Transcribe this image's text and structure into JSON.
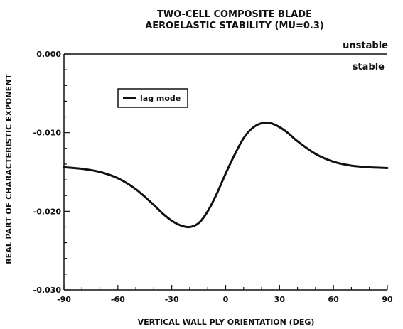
{
  "chart_data": {
    "type": "line",
    "title": "TWO-CELL COMPOSITE BLADE",
    "subtitle": "AEROELASTIC STABILITY (MU=0.3)",
    "xlabel": "VERTICAL WALL PLY ORIENTATION (DEG)",
    "ylabel": "REAL PART OF CHARACTERISTIC EXPONENT",
    "xlim": [
      -90,
      90
    ],
    "ylim": [
      -0.03,
      0.0
    ],
    "xticks": [
      -90,
      -60,
      -30,
      0,
      30,
      60,
      90
    ],
    "xtick_labels": [
      "-90",
      "-60",
      "-30",
      "0",
      "30",
      "60",
      "90"
    ],
    "yticks": [
      0.0,
      -0.01,
      -0.02,
      -0.03
    ],
    "ytick_labels": [
      "0.000",
      "-0.010",
      "-0.020",
      "-0.030"
    ],
    "grid": false,
    "legend_position": "upper-left",
    "region_labels": {
      "above": "unstable",
      "below": "stable"
    },
    "series": [
      {
        "name": "lag mode",
        "color": "#111111",
        "x": [
          -90,
          -80,
          -70,
          -60,
          -50,
          -40,
          -35,
          -30,
          -25,
          -20,
          -15,
          -10,
          -5,
          0,
          5,
          10,
          15,
          20,
          25,
          30,
          35,
          40,
          50,
          60,
          70,
          80,
          90
        ],
        "y": [
          -0.0144,
          -0.0146,
          -0.015,
          -0.0158,
          -0.0172,
          -0.0192,
          -0.0203,
          -0.0212,
          -0.0218,
          -0.022,
          -0.0215,
          -0.02,
          -0.0178,
          -0.0152,
          -0.0128,
          -0.0107,
          -0.0094,
          -0.0088,
          -0.0088,
          -0.0093,
          -0.0101,
          -0.0111,
          -0.0127,
          -0.0137,
          -0.0142,
          -0.0144,
          -0.0145
        ]
      }
    ]
  }
}
